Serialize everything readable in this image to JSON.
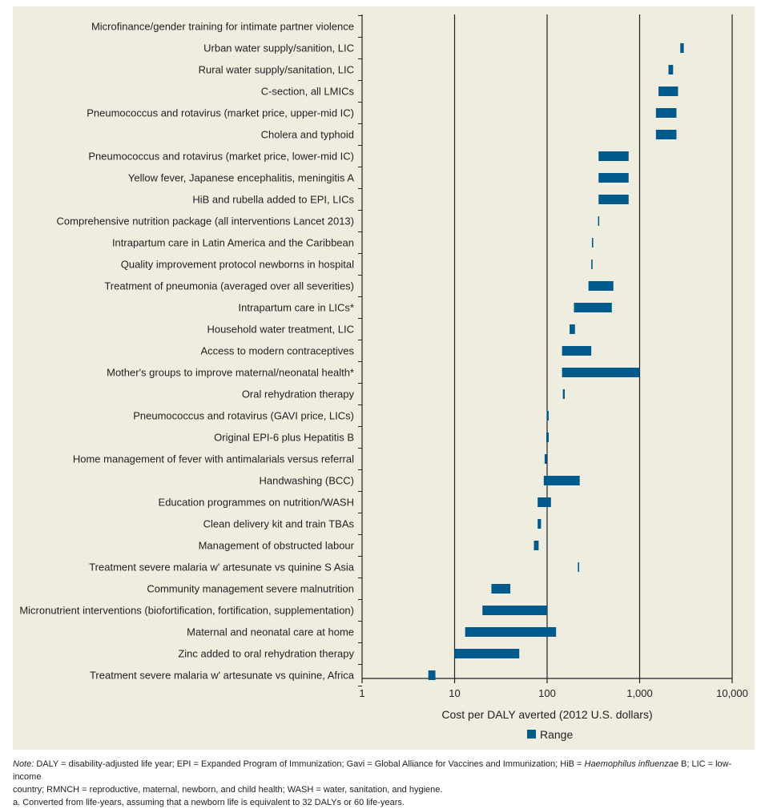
{
  "chart_data": {
    "type": "bar",
    "orientation": "horizontal",
    "xscale": "log",
    "xlim": [
      1,
      10000
    ],
    "xticks": [
      1,
      10,
      100,
      1000,
      10000
    ],
    "xtick_labels": [
      "1",
      "10",
      "100",
      "1,000",
      "10,000"
    ],
    "xlabel": "Cost per DALY averted (2012 U.S. dollars)",
    "grid": "vertical lines at 10, 100, 1,000, 10,000",
    "legend": {
      "position": "bottom-center",
      "entries": [
        {
          "name": "Range",
          "color": "#005a8c"
        }
      ]
    },
    "categories": [
      "Microfinance/gender training for intimate partner violence",
      "Urban water supply/sanition, LIC",
      "Rural water supply/sanitation, LIC",
      "C-section, all LMICs",
      "Pneumococcus and rotavirus (market price, upper-mid IC)",
      "Cholera and typhoid",
      "Pneumococcus and rotavirus (market price, lower-mid IC)",
      "Yellow fever, Japanese encephalitis, meningitis A",
      "HiB and rubella added to EPI, LICs",
      "Comprehensive nutrition package (all interventions Lancet 2013)",
      "Intrapartum care in Latin America and the Caribbean",
      "Quality improvement protocol newborns in hospital",
      "Treatment of pneumonia (averaged over all severities)",
      "Intrapartum care in LICs*",
      "Household water treatment, LIC",
      "Access to modern contraceptives",
      "Mother's groups to improve maternal/neonatal health*",
      "Oral rehydration therapy",
      "Pneumococcus and rotavirus (GAVI price, LICs)",
      "Original EPI-6 plus Hepatitis B",
      "Home management of fever with  antimalarials versus referral",
      "Handwashing (BCC)",
      "Education programmes on nutrition/WASH",
      "Clean delivery kit and train TBAs",
      "Management of obstructed labour",
      "Treatment severe malaria w' artesunate vs quinine S Asia",
      "Community management severe malnutrition",
      "Micronutrient interventions (biofortification, fortification, supplementation)",
      "Maternal and neonatal care at home",
      "Zinc added to oral rehydration therapy",
      "Treatment  severe malaria w' artesunate vs quinine, Africa"
    ],
    "series": [
      {
        "name": "Range",
        "ranges": [
          null,
          [
            2750,
            3000
          ],
          [
            2050,
            2300
          ],
          [
            1600,
            2600
          ],
          [
            1500,
            2500
          ],
          [
            1500,
            2500
          ],
          [
            360,
            760
          ],
          [
            360,
            760
          ],
          [
            360,
            760
          ],
          [
            355,
            365
          ],
          [
            305,
            315
          ],
          [
            300,
            310
          ],
          [
            280,
            520
          ],
          [
            195,
            500
          ],
          [
            175,
            200
          ],
          [
            145,
            300
          ],
          [
            145,
            1000
          ],
          [
            148,
            155
          ],
          [
            99,
            104
          ],
          [
            98,
            104
          ],
          [
            94,
            99
          ],
          [
            92,
            225
          ],
          [
            79,
            110
          ],
          [
            79,
            86
          ],
          [
            72,
            81
          ],
          [
            215,
            222
          ],
          [
            25,
            40
          ],
          [
            20,
            100
          ],
          [
            13,
            125
          ],
          [
            10,
            50
          ],
          [
            5.2,
            6.2
          ]
        ]
      }
    ]
  },
  "note": {
    "label": "Note:",
    "line1_a": " DALY = disability-adjusted life year; EPI = Expanded Program of Immunization; Gavi = Global Alliance for Vaccines and Immunization; HiB = ",
    "line1_italic": "Haemophilus influenzae",
    "line1_b": " B; LIC = low-income",
    "line2": "country; RMNCH = reproductive, maternal, newborn, and child health; WASH = water, sanitation, and hygiene.",
    "line3": "a. Converted from life-years, assuming that a newborn life is equivalent to 32 DALYs or 60 life-years."
  },
  "colors": {
    "bar": "#005a8c",
    "panel": "#efece0",
    "axis": "#222222"
  }
}
